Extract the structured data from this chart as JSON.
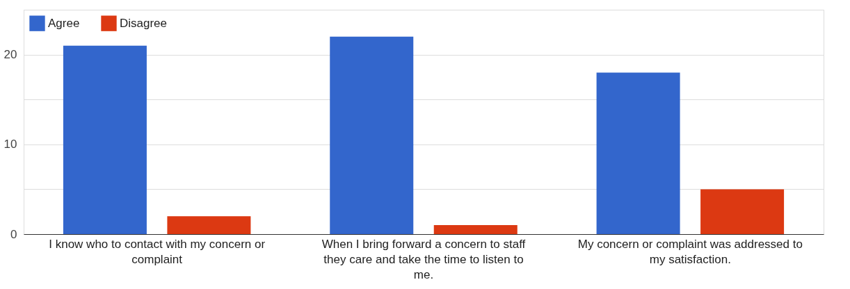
{
  "chart_data": {
    "type": "bar",
    "categories": [
      "I know who to contact with my concern or complaint",
      "When I bring forward a concern to staff they care and take the time to listen to me.",
      "My concern or complaint was addressed to my satisfaction."
    ],
    "series": [
      {
        "name": "Agree",
        "color": "#3366cc",
        "values": [
          21,
          22,
          18
        ]
      },
      {
        "name": "Disagree",
        "color": "#dc3912",
        "values": [
          2,
          1,
          5
        ]
      }
    ],
    "ylim": [
      0,
      25
    ],
    "yticks": [
      0,
      {
        "value": 5,
        "label": null
      },
      10,
      {
        "value": 15,
        "label": null
      },
      20,
      {
        "value": 25,
        "label": null
      }
    ],
    "grid": "y",
    "legend": "top left"
  }
}
